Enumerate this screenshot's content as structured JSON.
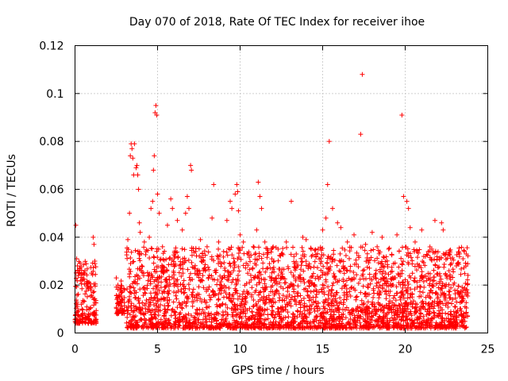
{
  "chart_data": {
    "type": "scatter",
    "title": "Day 070 of 2018, Rate Of TEC Index for receiver ihoe",
    "xlabel": "GPS time / hours",
    "ylabel": "ROTI / TECUs",
    "xlim": [
      0,
      25
    ],
    "ylim": [
      0,
      0.12
    ],
    "xticks": [
      0,
      5,
      10,
      15,
      20,
      25
    ],
    "xtick_labels": [
      "0",
      "5",
      "10",
      "15",
      "20",
      "25"
    ],
    "yticks": [
      0,
      0.02,
      0.04,
      0.06,
      0.08,
      0.1,
      0.12
    ],
    "ytick_labels": [
      "0",
      "0.02",
      "0.04",
      "0.06",
      "0.08",
      "0.1",
      "0.12"
    ],
    "grid": true,
    "marker": "+",
    "color": "#ff0000",
    "series": [
      {
        "name": "ROTI",
        "points": [
          [
            0.05,
            0.045
          ],
          [
            0.1,
            0.031
          ],
          [
            0.15,
            0.028
          ],
          [
            0.2,
            0.024
          ],
          [
            0.3,
            0.027
          ],
          [
            0.45,
            0.022
          ],
          [
            0.6,
            0.026
          ],
          [
            0.8,
            0.021
          ],
          [
            1.0,
            0.025
          ],
          [
            1.1,
            0.04
          ],
          [
            1.15,
            0.037
          ],
          [
            1.2,
            0.03
          ],
          [
            2.5,
            0.023
          ],
          [
            2.6,
            0.02
          ],
          [
            3.0,
            0.018
          ],
          [
            3.2,
            0.039
          ],
          [
            3.3,
            0.05
          ],
          [
            3.35,
            0.074
          ],
          [
            3.4,
            0.079
          ],
          [
            3.45,
            0.077
          ],
          [
            3.5,
            0.073
          ],
          [
            3.55,
            0.066
          ],
          [
            3.6,
            0.079
          ],
          [
            3.7,
            0.069
          ],
          [
            3.75,
            0.07
          ],
          [
            3.8,
            0.066
          ],
          [
            3.85,
            0.06
          ],
          [
            3.9,
            0.046
          ],
          [
            3.95,
            0.042
          ],
          [
            4.2,
            0.038
          ],
          [
            4.5,
            0.04
          ],
          [
            4.6,
            0.052
          ],
          [
            4.7,
            0.055
          ],
          [
            4.75,
            0.068
          ],
          [
            4.8,
            0.074
          ],
          [
            4.85,
            0.092
          ],
          [
            4.9,
            0.095
          ],
          [
            4.95,
            0.091
          ],
          [
            5.0,
            0.058
          ],
          [
            5.1,
            0.05
          ],
          [
            5.3,
            0.036
          ],
          [
            5.6,
            0.045
          ],
          [
            5.8,
            0.056
          ],
          [
            5.9,
            0.052
          ],
          [
            6.2,
            0.047
          ],
          [
            6.5,
            0.043
          ],
          [
            6.7,
            0.05
          ],
          [
            6.8,
            0.057
          ],
          [
            6.9,
            0.052
          ],
          [
            7.0,
            0.07
          ],
          [
            7.05,
            0.068
          ],
          [
            7.3,
            0.034
          ],
          [
            7.6,
            0.039
          ],
          [
            8.0,
            0.036
          ],
          [
            8.3,
            0.048
          ],
          [
            8.4,
            0.062
          ],
          [
            8.7,
            0.038
          ],
          [
            9.0,
            0.034
          ],
          [
            9.2,
            0.047
          ],
          [
            9.4,
            0.055
          ],
          [
            9.5,
            0.052
          ],
          [
            9.7,
            0.058
          ],
          [
            9.8,
            0.062
          ],
          [
            9.85,
            0.059
          ],
          [
            9.9,
            0.051
          ],
          [
            10.0,
            0.041
          ],
          [
            10.2,
            0.038
          ],
          [
            10.5,
            0.033
          ],
          [
            10.8,
            0.036
          ],
          [
            11.0,
            0.043
          ],
          [
            11.1,
            0.063
          ],
          [
            11.2,
            0.057
          ],
          [
            11.3,
            0.052
          ],
          [
            11.5,
            0.038
          ],
          [
            12.0,
            0.036
          ],
          [
            12.3,
            0.035
          ],
          [
            12.5,
            0.033
          ],
          [
            12.8,
            0.038
          ],
          [
            13.1,
            0.055
          ],
          [
            13.4,
            0.033
          ],
          [
            13.8,
            0.04
          ],
          [
            14.0,
            0.039
          ],
          [
            14.3,
            0.035
          ],
          [
            14.6,
            0.032
          ],
          [
            15.0,
            0.043
          ],
          [
            15.2,
            0.048
          ],
          [
            15.3,
            0.062
          ],
          [
            15.4,
            0.08
          ],
          [
            15.6,
            0.052
          ],
          [
            15.9,
            0.046
          ],
          [
            16.1,
            0.044
          ],
          [
            16.5,
            0.038
          ],
          [
            16.9,
            0.041
          ],
          [
            17.3,
            0.083
          ],
          [
            17.4,
            0.108
          ],
          [
            17.6,
            0.037
          ],
          [
            18.0,
            0.042
          ],
          [
            18.3,
            0.036
          ],
          [
            18.6,
            0.04
          ],
          [
            19.0,
            0.035
          ],
          [
            19.5,
            0.041
          ],
          [
            19.8,
            0.091
          ],
          [
            19.9,
            0.057
          ],
          [
            20.1,
            0.055
          ],
          [
            20.2,
            0.052
          ],
          [
            20.3,
            0.044
          ],
          [
            20.6,
            0.038
          ],
          [
            21.0,
            0.043
          ],
          [
            21.4,
            0.034
          ],
          [
            21.8,
            0.047
          ],
          [
            22.2,
            0.046
          ],
          [
            22.3,
            0.043
          ],
          [
            22.7,
            0.033
          ],
          [
            23.1,
            0.028
          ],
          [
            23.5,
            0.031
          ],
          [
            23.7,
            0.033
          ]
        ],
        "dense_bands": [
          {
            "x_range": [
              0.0,
              1.3
            ],
            "y_range": [
              0.004,
              0.03
            ]
          },
          {
            "x_range": [
              2.5,
              3.0
            ],
            "y_range": [
              0.008,
              0.022
            ]
          },
          {
            "x_range": [
              3.1,
              23.8
            ],
            "y_range": [
              0.002,
              0.036
            ]
          }
        ]
      }
    ]
  }
}
